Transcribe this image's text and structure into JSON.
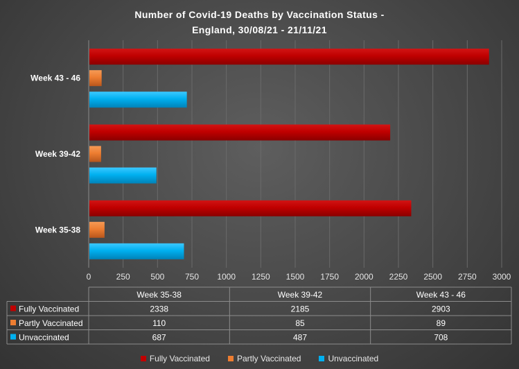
{
  "chart_data": {
    "type": "bar",
    "orientation": "horizontal",
    "title_lines": [
      "Number of Covid-19 Deaths by Vaccination Status -",
      "England, 30/08/21  - 21/11/21"
    ],
    "categories": [
      "Week 35-38",
      "Week 39-42",
      "Week 43 - 46"
    ],
    "xlim": [
      0,
      3000
    ],
    "x_ticks": [
      "0",
      "250",
      "500",
      "750",
      "1000",
      "1250",
      "1500",
      "1750",
      "2000",
      "2250",
      "2500",
      "2750",
      "3000"
    ],
    "grid": true,
    "series": [
      {
        "name": "Fully Vaccinated",
        "color": "#c00000",
        "values": [
          2338,
          2185,
          2903
        ]
      },
      {
        "name": "Partly Vaccinated",
        "color": "#ed7d31",
        "values": [
          110,
          85,
          89
        ]
      },
      {
        "name": "Unvaccinated",
        "color": "#00b0f0",
        "values": [
          687,
          487,
          708
        ]
      }
    ],
    "data_table": {
      "headers": [
        "Week 35-38",
        "Week 39-42",
        "Week 43 - 46"
      ],
      "rows": [
        {
          "label": "Fully Vaccinated",
          "values": [
            "2338",
            "2185",
            "2903"
          ]
        },
        {
          "label": "Partly Vaccinated",
          "values": [
            "110",
            "85",
            "89"
          ]
        },
        {
          "label": "Unvaccinated",
          "values": [
            "687",
            "487",
            "708"
          ]
        }
      ]
    },
    "legend": {
      "placement": "bottom",
      "entries": [
        "Fully Vaccinated",
        "Partly Vaccinated",
        "Unvaccinated"
      ]
    }
  }
}
